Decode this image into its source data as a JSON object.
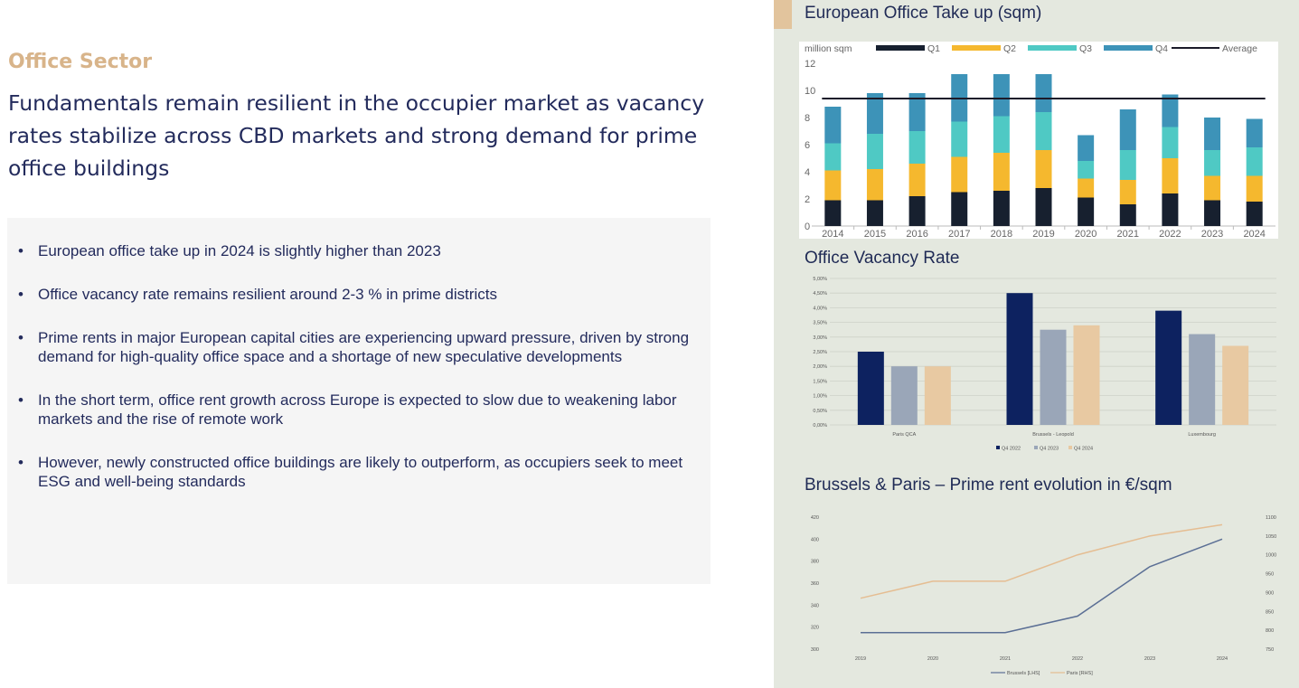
{
  "left": {
    "section_title": "Office Sector",
    "headline": "Fundamentals remain resilient in the occupier market as vacancy rates stabilize across CBD markets and strong demand for prime office buildings",
    "bullets": [
      "European office take up in 2024 is slightly higher than 2023",
      "Office vacancy rate remains resilient around 2-3 % in prime districts",
      "Prime rents in major European capital cities are experiencing upward pressure, driven by strong demand for high-quality office space and a shortage of new speculative developments",
      "In the short term, office rent growth across Europe is expected to slow due to weakening labor markets and the rise of remote work",
      "However, newly constructed office buildings are likely to outperform, as occupiers seek to meet ESG and well-being standards"
    ]
  },
  "colors": {
    "accent": "#d8b48a",
    "navy": "#232b5c",
    "panel_bg": "#e4e8df",
    "q1": "#17202f",
    "q2": "#f5b82e",
    "q3": "#4fc9c4",
    "q4": "#3d93b8",
    "vac_2022": "#0d2260",
    "vac_2023": "#9aa6b8",
    "vac_2024": "#e8c9a2",
    "brussels": "#5b6f95",
    "paris": "#e5bd92"
  },
  "chart_data": [
    {
      "type": "bar",
      "stacked": true,
      "title": "European Office Take up (sqm)",
      "unit_label": "million sqm",
      "categories": [
        "2014",
        "2015",
        "2016",
        "2017",
        "2018",
        "2019",
        "2020",
        "2021",
        "2022",
        "2023",
        "2024"
      ],
      "series": [
        {
          "name": "Q1",
          "values": [
            1.9,
            1.9,
            2.2,
            2.5,
            2.6,
            2.8,
            2.1,
            1.6,
            2.4,
            1.9,
            1.8
          ]
        },
        {
          "name": "Q2",
          "values": [
            2.2,
            2.3,
            2.4,
            2.6,
            2.8,
            2.8,
            1.4,
            1.8,
            2.6,
            1.8,
            1.9
          ]
        },
        {
          "name": "Q3",
          "values": [
            2.0,
            2.6,
            2.4,
            2.6,
            2.7,
            2.8,
            1.3,
            2.2,
            2.3,
            1.9,
            2.1
          ]
        },
        {
          "name": "Q4",
          "values": [
            2.7,
            3.0,
            2.8,
            3.5,
            3.1,
            2.8,
            1.9,
            3.0,
            2.4,
            2.4,
            2.1
          ]
        }
      ],
      "average": {
        "name": "Average",
        "value": 9.4
      },
      "ylim": [
        0,
        12
      ],
      "yticks": [
        0,
        2,
        4,
        6,
        8,
        10,
        12
      ],
      "legend_position": "top"
    },
    {
      "type": "bar",
      "title": "Office Vacancy Rate",
      "categories": [
        "Paris QCA",
        "Brussels - Leopold",
        "Luxembourg"
      ],
      "series": [
        {
          "name": "Q4 2022",
          "values": [
            2.5,
            4.5,
            3.9
          ]
        },
        {
          "name": "Q4 2023",
          "values": [
            2.0,
            3.25,
            3.1
          ]
        },
        {
          "name": "Q4 2024",
          "values": [
            2.0,
            3.4,
            2.7
          ]
        }
      ],
      "ylim": [
        0,
        5
      ],
      "yticks": [
        "0,00%",
        "0,50%",
        "1,00%",
        "1,50%",
        "2,00%",
        "2,50%",
        "3,00%",
        "3,50%",
        "4,00%",
        "4,50%",
        "5,00%"
      ],
      "grid": true,
      "legend_position": "bottom"
    },
    {
      "type": "line",
      "title": "Brussels & Paris – Prime rent evolution in €/sqm",
      "x": [
        "2019",
        "2020",
        "2021",
        "2022",
        "2023",
        "2024"
      ],
      "series": [
        {
          "name": "Brussels [LHS]",
          "axis": "left",
          "values": [
            315,
            315,
            315,
            330,
            375,
            400
          ]
        },
        {
          "name": "Paris [RHS]",
          "axis": "right",
          "values": [
            885,
            930,
            930,
            1000,
            1050,
            1080
          ]
        }
      ],
      "ylim_left": [
        300,
        420
      ],
      "yticks_left": [
        300,
        320,
        340,
        360,
        380,
        400,
        420
      ],
      "ylim_right": [
        750,
        1100
      ],
      "yticks_right": [
        750,
        800,
        850,
        900,
        950,
        1000,
        1050,
        1100
      ],
      "legend_position": "bottom"
    }
  ]
}
